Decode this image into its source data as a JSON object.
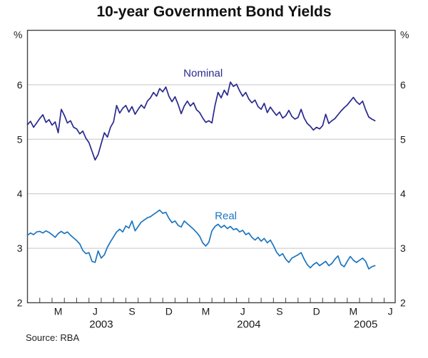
{
  "chart_data": {
    "type": "line",
    "title": "10-year Government Bond Yields",
    "source": "Source: RBA",
    "unit_label": "%",
    "ylim": [
      2,
      7
    ],
    "y_ticks": [
      2,
      3,
      4,
      5,
      6
    ],
    "gridline_values": [
      3,
      4,
      5,
      6
    ],
    "x_unit": "months since Jan 2003",
    "xlim_months": [
      0,
      29.9
    ],
    "x_month_ticks": [
      1,
      2,
      3,
      4,
      5,
      6,
      7,
      8,
      9,
      10,
      11,
      12,
      13,
      14,
      15,
      16,
      17,
      18,
      19,
      20,
      21,
      22,
      23,
      24,
      25,
      26,
      27,
      28,
      29
    ],
    "x_month_labels": [
      {
        "label": "M",
        "t": 2.5
      },
      {
        "label": "J",
        "t": 5.5
      },
      {
        "label": "S",
        "t": 8.5
      },
      {
        "label": "D",
        "t": 11.5
      },
      {
        "label": "M",
        "t": 14.5
      },
      {
        "label": "J",
        "t": 17.5
      },
      {
        "label": "S",
        "t": 20.5
      },
      {
        "label": "D",
        "t": 23.5
      },
      {
        "label": "M",
        "t": 26.5
      },
      {
        "label": "J",
        "t": 29.5
      }
    ],
    "x_year_labels": [
      {
        "label": "2003",
        "t": 6.0
      },
      {
        "label": "2004",
        "t": 18.0
      },
      {
        "label": "2005",
        "t": 27.5
      }
    ],
    "axis_color": "#444444",
    "grid_color": "#c6c6c6",
    "text_color": "#1a1a1a",
    "x": [
      0,
      0.25,
      0.5,
      0.75,
      1,
      1.25,
      1.5,
      1.75,
      2,
      2.25,
      2.5,
      2.75,
      3,
      3.25,
      3.5,
      3.75,
      4,
      4.25,
      4.5,
      4.75,
      5,
      5.25,
      5.5,
      5.75,
      6,
      6.25,
      6.5,
      6.75,
      7,
      7.25,
      7.5,
      7.75,
      8,
      8.25,
      8.5,
      8.75,
      9,
      9.25,
      9.5,
      9.75,
      10,
      10.25,
      10.5,
      10.75,
      11,
      11.25,
      11.5,
      11.75,
      12,
      12.25,
      12.5,
      12.75,
      13,
      13.25,
      13.5,
      13.75,
      14,
      14.25,
      14.5,
      14.75,
      15,
      15.25,
      15.5,
      15.75,
      16,
      16.25,
      16.5,
      16.75,
      17,
      17.25,
      17.5,
      17.75,
      18,
      18.25,
      18.5,
      18.75,
      19,
      19.25,
      19.5,
      19.75,
      20,
      20.25,
      20.5,
      20.75,
      21,
      21.25,
      21.5,
      21.75,
      22,
      22.25,
      22.5,
      22.75,
      23,
      23.25,
      23.5,
      23.75,
      24,
      24.25,
      24.5,
      24.75,
      25,
      25.25,
      25.5,
      25.75,
      26,
      26.25,
      26.5,
      26.75,
      27,
      27.25,
      27.5,
      27.75,
      28,
      28.25
    ],
    "series": [
      {
        "name": "Nominal",
        "color": "#28288e",
        "label_t": 14.28,
        "label_value": 6.15,
        "values": [
          5.27,
          5.33,
          5.22,
          5.3,
          5.38,
          5.45,
          5.31,
          5.36,
          5.26,
          5.32,
          5.12,
          5.55,
          5.44,
          5.3,
          5.34,
          5.22,
          5.19,
          5.1,
          5.15,
          5.02,
          4.94,
          4.78,
          4.62,
          4.72,
          4.92,
          5.12,
          5.04,
          5.22,
          5.32,
          5.62,
          5.48,
          5.57,
          5.62,
          5.5,
          5.6,
          5.46,
          5.55,
          5.63,
          5.57,
          5.7,
          5.76,
          5.86,
          5.79,
          5.93,
          5.87,
          5.96,
          5.79,
          5.69,
          5.78,
          5.64,
          5.47,
          5.61,
          5.7,
          5.61,
          5.67,
          5.54,
          5.49,
          5.39,
          5.31,
          5.34,
          5.3,
          5.62,
          5.86,
          5.76,
          5.9,
          5.81,
          6.05,
          5.97,
          6.01,
          5.89,
          5.79,
          5.86,
          5.74,
          5.67,
          5.72,
          5.6,
          5.55,
          5.66,
          5.49,
          5.59,
          5.51,
          5.44,
          5.5,
          5.39,
          5.43,
          5.53,
          5.42,
          5.37,
          5.4,
          5.55,
          5.39,
          5.29,
          5.24,
          5.17,
          5.22,
          5.19,
          5.25,
          5.46,
          5.29,
          5.34,
          5.38,
          5.45,
          5.52,
          5.58,
          5.63,
          5.7,
          5.77,
          5.69,
          5.64,
          5.7,
          5.54,
          5.41,
          5.37,
          5.34
        ]
      },
      {
        "name": "Real",
        "color": "#1b75c0",
        "label_t": 16.13,
        "label_value": 3.53,
        "values": [
          3.24,
          3.28,
          3.25,
          3.3,
          3.31,
          3.28,
          3.32,
          3.29,
          3.25,
          3.2,
          3.27,
          3.31,
          3.27,
          3.3,
          3.24,
          3.19,
          3.14,
          3.08,
          2.96,
          2.9,
          2.92,
          2.76,
          2.74,
          2.95,
          2.82,
          2.88,
          3.02,
          3.12,
          3.21,
          3.3,
          3.35,
          3.3,
          3.41,
          3.37,
          3.5,
          3.32,
          3.4,
          3.48,
          3.52,
          3.56,
          3.58,
          3.62,
          3.66,
          3.7,
          3.64,
          3.66,
          3.55,
          3.47,
          3.5,
          3.42,
          3.39,
          3.5,
          3.45,
          3.4,
          3.35,
          3.29,
          3.22,
          3.1,
          3.04,
          3.11,
          3.32,
          3.4,
          3.44,
          3.38,
          3.42,
          3.36,
          3.4,
          3.34,
          3.36,
          3.3,
          3.33,
          3.25,
          3.28,
          3.2,
          3.15,
          3.2,
          3.13,
          3.18,
          3.1,
          3.15,
          3.05,
          2.93,
          2.86,
          2.9,
          2.8,
          2.74,
          2.82,
          2.85,
          2.88,
          2.92,
          2.8,
          2.7,
          2.64,
          2.7,
          2.74,
          2.68,
          2.72,
          2.76,
          2.68,
          2.72,
          2.8,
          2.86,
          2.7,
          2.66,
          2.76,
          2.85,
          2.78,
          2.74,
          2.78,
          2.82,
          2.76,
          2.62,
          2.66,
          2.68
        ]
      }
    ]
  }
}
